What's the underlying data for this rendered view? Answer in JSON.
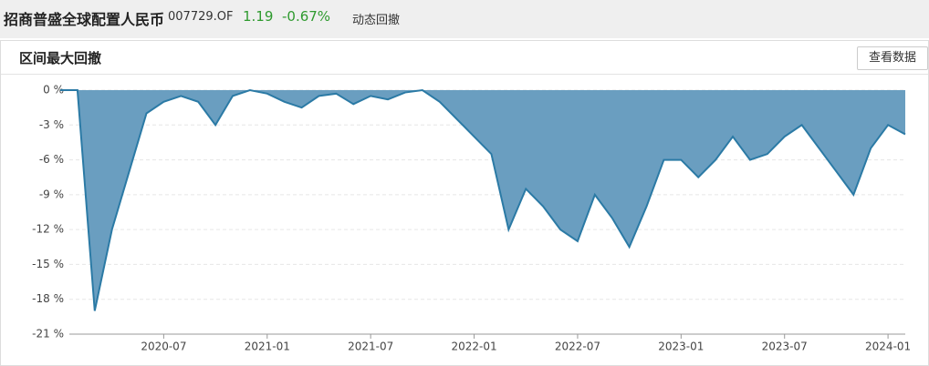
{
  "header": {
    "fund_name": "招商普盛全球配置人民币",
    "fund_code": "007729.OF",
    "nav": "1.19",
    "change": "-0.67%",
    "tab": "动态回撤"
  },
  "panel": {
    "title": "区间最大回撤",
    "button": "查看数据"
  },
  "chart_data": {
    "type": "area",
    "x": [
      "2020-01",
      "2020-02",
      "2020-03",
      "2020-04",
      "2020-05",
      "2020-06",
      "2020-07",
      "2020-08",
      "2020-09",
      "2020-10",
      "2020-11",
      "2020-12",
      "2021-01",
      "2021-02",
      "2021-03",
      "2021-04",
      "2021-05",
      "2021-06",
      "2021-07",
      "2021-08",
      "2021-09",
      "2021-10",
      "2021-11",
      "2021-12",
      "2022-01",
      "2022-02",
      "2022-03",
      "2022-04",
      "2022-05",
      "2022-06",
      "2022-07",
      "2022-08",
      "2022-09",
      "2022-10",
      "2022-11",
      "2022-12",
      "2023-01",
      "2023-02",
      "2023-03",
      "2023-04",
      "2023-05",
      "2023-06",
      "2023-07",
      "2023-08",
      "2023-09",
      "2023-10",
      "2023-11",
      "2023-12",
      "2024-01",
      "2024-02"
    ],
    "values": [
      0,
      0,
      -19,
      -12,
      -7,
      -2,
      -1,
      -0.5,
      -1,
      -3,
      -0.5,
      0,
      -0.3,
      -1,
      -1.5,
      -0.5,
      -0.3,
      -1.2,
      -0.5,
      -0.8,
      -0.2,
      0,
      -1,
      -2.5,
      -4,
      -5.5,
      -12,
      -8.5,
      -10,
      -12,
      -13,
      -9,
      -11,
      -13.5,
      -10,
      -6,
      -6,
      -7.5,
      -6,
      -4,
      -6,
      -5.5,
      -4,
      -3,
      -5,
      -7,
      -9,
      -5,
      -3,
      -3.8
    ],
    "color": "#6a9ec0",
    "line_color": "#2b7aa5",
    "xlim": [
      "2020-01",
      "2024-02"
    ],
    "xticks": [
      "2020-07",
      "2021-01",
      "2021-07",
      "2022-01",
      "2022-07",
      "2023-01",
      "2023-07",
      "2024-01"
    ],
    "ylim": [
      -21,
      0
    ],
    "yticks": [
      {
        "value": 0,
        "label": "0 %"
      },
      {
        "value": -3,
        "label": "-3 %"
      },
      {
        "value": -6,
        "label": "-6 %"
      },
      {
        "value": -9,
        "label": "-9 %"
      },
      {
        "value": -12,
        "label": "-12 %"
      },
      {
        "value": -15,
        "label": "-15 %"
      },
      {
        "value": -18,
        "label": "-18 %"
      },
      {
        "value": -21,
        "label": "-21 %"
      }
    ],
    "grid": true
  }
}
